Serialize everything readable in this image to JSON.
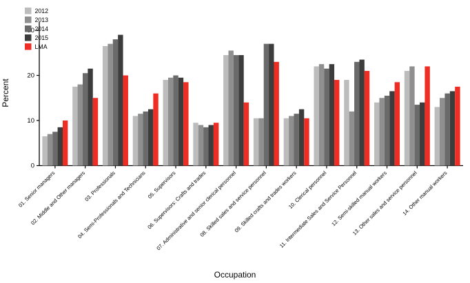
{
  "chart_data": {
    "type": "bar",
    "title": "",
    "xlabel": "Occupation",
    "ylabel": "Percent",
    "ylim": [
      0,
      31
    ],
    "yticks": [
      0,
      10,
      20,
      30
    ],
    "grid": false,
    "legend_position": "top-left",
    "categories": [
      "01. Senior managers",
      "02. Middle and Other managers",
      "03. Professionals",
      "04. Semi-Professionals and Technicians",
      "05. Supervisors",
      "06. Supervisors: Crafts and trades",
      "07. Administrative and senior clerical personnel",
      "08. Skilled sales and service personnel",
      "09. Skilled crafts and trades workers",
      "10. Clerical personnel",
      "11. Intermediate Sales and Service Personnel",
      "12. Semi-skilled manual workers",
      "13. Other sales and service personnel",
      "14. Other manual workers"
    ],
    "series": [
      {
        "name": "2012",
        "color": "#bcbcbc",
        "values": [
          6.5,
          17.5,
          26.5,
          11.0,
          19.0,
          9.5,
          24.5,
          10.5,
          10.5,
          22.0,
          19.0,
          14.0,
          21.0,
          13.0
        ]
      },
      {
        "name": "2013",
        "color": "#8f8f8f",
        "values": [
          7.0,
          18.0,
          27.0,
          11.5,
          19.5,
          9.0,
          25.5,
          10.5,
          11.0,
          22.5,
          12.0,
          15.0,
          22.0,
          15.0
        ]
      },
      {
        "name": "2014",
        "color": "#6a6a6a",
        "values": [
          7.5,
          20.5,
          28.0,
          12.0,
          20.0,
          8.5,
          24.5,
          27.0,
          11.5,
          21.5,
          23.0,
          15.5,
          13.5,
          16.0
        ]
      },
      {
        "name": "2015",
        "color": "#3c3c3c",
        "values": [
          8.5,
          21.5,
          29.0,
          12.5,
          19.5,
          9.0,
          24.5,
          27.0,
          12.5,
          22.5,
          23.5,
          16.5,
          14.0,
          16.5
        ]
      },
      {
        "name": "LMA",
        "color": "#ee2e24",
        "values": [
          10.0,
          15.0,
          20.0,
          16.0,
          18.5,
          9.5,
          14.0,
          23.0,
          10.5,
          19.0,
          21.0,
          18.5,
          22.0,
          17.5
        ]
      }
    ],
    "axis_color": "#000000",
    "text_color": "#000000"
  }
}
